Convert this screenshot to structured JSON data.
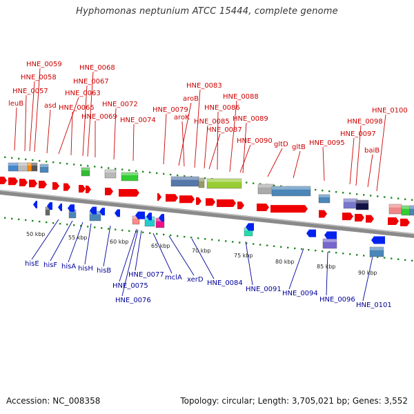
{
  "title": "Hyphomonas neptunium ATCC 15444, complete genome",
  "footer": {
    "accession": "Accession: NC_008358",
    "summary": "Topology: circular; Length: 3,705,021 bp; Genes: 3,552"
  },
  "colors": {
    "forward_label": "#cc0000",
    "reverse_label": "#000099",
    "forward_arrow": "#ee0000",
    "reverse_arrow": "#0022ee",
    "backbone": "#888888",
    "dots": "#228822"
  },
  "kbp_ticks": [
    "50 kbp",
    "55 kbp",
    "60 kbp",
    "65 kbp",
    "70 kbp",
    "75 kbp",
    "80 kbp",
    "85 kbp",
    "90 kbp"
  ],
  "forward_genes": [
    "leuB",
    "HNE_0057",
    "HNE_0058",
    "HNE_0059",
    "asd",
    "HNE_0063",
    "HNE_0065",
    "HNE_0067",
    "HNE_0068",
    "HNE_0069",
    "HNE_0072",
    "HNE_0074",
    "HNE_0079",
    "aroB",
    "aroK",
    "HNE_0083",
    "HNE_0085",
    "HNE_0086",
    "HNE_0087",
    "HNE_0088",
    "HNE_0089",
    "HNE_0090",
    "gltD",
    "gltB",
    "HNE_0095",
    "HNE_0097",
    "HNE_0098",
    "baiB",
    "HNE_0100"
  ],
  "reverse_genes": [
    "hisE",
    "hisF",
    "hisA",
    "hisH",
    "hisB",
    "HNE_0075",
    "HNE_0076",
    "HNE_0077",
    "mclA",
    "xerD",
    "HNE_0084",
    "HNE_0091",
    "HNE_0094",
    "HNE_0096",
    "HNE_0101"
  ]
}
